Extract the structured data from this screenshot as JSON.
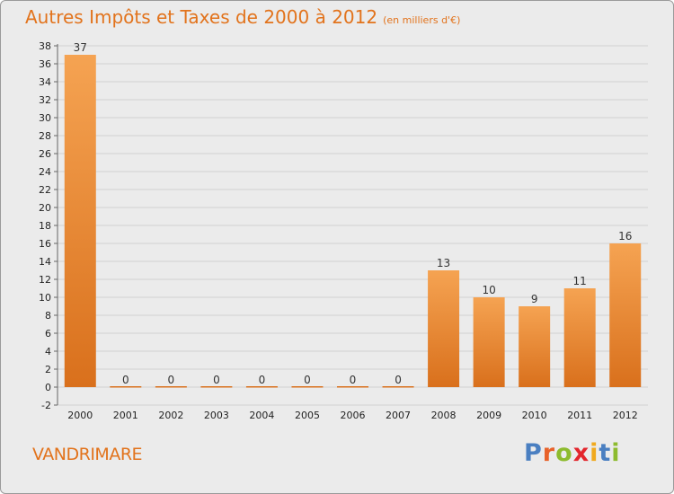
{
  "header": {
    "title": "Autres Impôts et Taxes de 2000 à 2012",
    "subtitle": "(en milliers d'€)"
  },
  "commune": "VANDRIMARE",
  "brand": {
    "letters": [
      "P",
      "r",
      "o",
      "x",
      "i",
      "t",
      "i"
    ]
  },
  "colors": {
    "title": "#e2731c",
    "bar_light": "#f5a352",
    "bar_dark": "#d9701c",
    "background": "#ebebeb"
  },
  "chart_data": {
    "type": "bar",
    "title": "Autres Impôts et Taxes de 2000 à 2012",
    "subtitle": "(en milliers d'€)",
    "xlabel": "",
    "ylabel": "",
    "categories": [
      "2000",
      "2001",
      "2002",
      "2003",
      "2004",
      "2005",
      "2006",
      "2007",
      "2008",
      "2009",
      "2010",
      "2011",
      "2012"
    ],
    "values": [
      37,
      0,
      0,
      0,
      0,
      0,
      0,
      0,
      13,
      10,
      9,
      11,
      16
    ],
    "data_labels": [
      "37",
      "0",
      "0",
      "0",
      "0",
      "0",
      "0",
      "0",
      "13",
      "10",
      "9",
      "11",
      "16"
    ],
    "ylim": [
      -2,
      38
    ],
    "yticks": [
      -2,
      0,
      2,
      4,
      6,
      8,
      10,
      12,
      14,
      16,
      18,
      20,
      22,
      24,
      26,
      28,
      30,
      32,
      34,
      36,
      38
    ],
    "grid": "horizontal"
  }
}
